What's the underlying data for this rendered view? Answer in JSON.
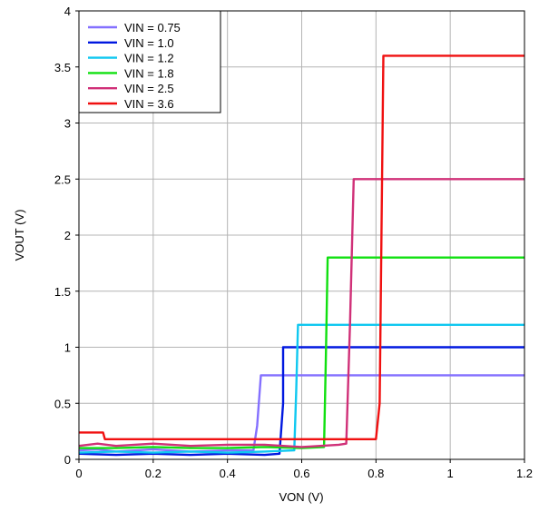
{
  "chart_data": {
    "type": "line",
    "title": "",
    "xlabel": "VON (V)",
    "ylabel": "VOUT (V)",
    "xlim": [
      0,
      1.2
    ],
    "ylim": [
      0,
      4
    ],
    "x_ticks": [
      "0",
      "0.2",
      "0.4",
      "0.6",
      "0.8",
      "1",
      "1.2"
    ],
    "y_ticks": [
      "0",
      "0.5",
      "1",
      "1.5",
      "2",
      "2.5",
      "3",
      "3.5",
      "4"
    ],
    "grid": true,
    "legend_position": "top-left",
    "series": [
      {
        "name": "VIN = 0.75",
        "color": "#8470ff",
        "points": [
          [
            0,
            0.08
          ],
          [
            0.05,
            0.09
          ],
          [
            0.1,
            0.07
          ],
          [
            0.2,
            0.09
          ],
          [
            0.3,
            0.07
          ],
          [
            0.4,
            0.08
          ],
          [
            0.47,
            0.08
          ],
          [
            0.48,
            0.3
          ],
          [
            0.49,
            0.75
          ],
          [
            1.2,
            0.75
          ]
        ]
      },
      {
        "name": "VIN = 1.0",
        "color": "#0018e0",
        "points": [
          [
            0,
            0.05
          ],
          [
            0.1,
            0.04
          ],
          [
            0.2,
            0.05
          ],
          [
            0.3,
            0.04
          ],
          [
            0.4,
            0.05
          ],
          [
            0.5,
            0.04
          ],
          [
            0.54,
            0.05
          ],
          [
            0.55,
            0.5
          ],
          [
            0.55,
            1.0
          ],
          [
            1.2,
            1.0
          ]
        ]
      },
      {
        "name": "VIN = 1.2",
        "color": "#10c8f0",
        "points": [
          [
            0,
            0.06
          ],
          [
            0.1,
            0.07
          ],
          [
            0.2,
            0.06
          ],
          [
            0.3,
            0.07
          ],
          [
            0.4,
            0.06
          ],
          [
            0.5,
            0.07
          ],
          [
            0.58,
            0.08
          ],
          [
            0.585,
            0.6
          ],
          [
            0.59,
            1.2
          ],
          [
            1.2,
            1.2
          ]
        ]
      },
      {
        "name": "VIN = 1.8",
        "color": "#10e010",
        "points": [
          [
            0,
            0.1
          ],
          [
            0.1,
            0.1
          ],
          [
            0.2,
            0.11
          ],
          [
            0.3,
            0.1
          ],
          [
            0.4,
            0.1
          ],
          [
            0.5,
            0.11
          ],
          [
            0.6,
            0.1
          ],
          [
            0.66,
            0.11
          ],
          [
            0.665,
            0.9
          ],
          [
            0.67,
            1.8
          ],
          [
            1.2,
            1.8
          ]
        ]
      },
      {
        "name": "VIN = 2.5",
        "color": "#d03078",
        "points": [
          [
            0,
            0.12
          ],
          [
            0.05,
            0.14
          ],
          [
            0.1,
            0.12
          ],
          [
            0.2,
            0.14
          ],
          [
            0.3,
            0.12
          ],
          [
            0.4,
            0.13
          ],
          [
            0.5,
            0.13
          ],
          [
            0.6,
            0.11
          ],
          [
            0.7,
            0.13
          ],
          [
            0.72,
            0.14
          ],
          [
            0.73,
            1.2
          ],
          [
            0.74,
            2.5
          ],
          [
            1.2,
            2.5
          ]
        ]
      },
      {
        "name": "VIN = 3.6",
        "color": "#f01010",
        "points": [
          [
            0,
            0.24
          ],
          [
            0.065,
            0.24
          ],
          [
            0.07,
            0.18
          ],
          [
            0.2,
            0.18
          ],
          [
            0.3,
            0.18
          ],
          [
            0.4,
            0.18
          ],
          [
            0.5,
            0.18
          ],
          [
            0.6,
            0.18
          ],
          [
            0.7,
            0.18
          ],
          [
            0.8,
            0.18
          ],
          [
            0.81,
            0.5
          ],
          [
            0.82,
            3.6
          ],
          [
            1.2,
            3.6
          ]
        ]
      }
    ]
  }
}
